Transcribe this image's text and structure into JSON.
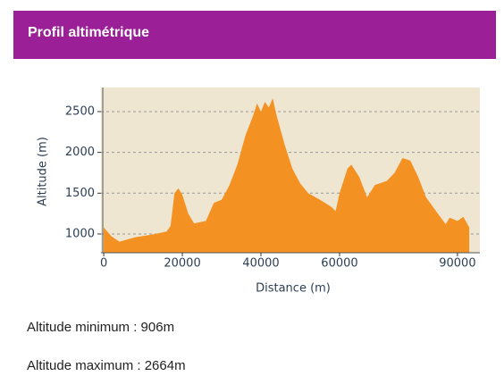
{
  "header": {
    "title": "Profil altimétrique"
  },
  "chart_data": {
    "type": "area",
    "ylabel": "Altitude (m)",
    "xlabel": "Distance (m)",
    "x": [
      0,
      2000,
      4000,
      8000,
      12000,
      16000,
      17000,
      18000,
      19000,
      20000,
      21500,
      23000,
      26000,
      28000,
      30000,
      32000,
      34000,
      36000,
      38000,
      39000,
      40000,
      41000,
      42000,
      43000,
      44000,
      46000,
      48000,
      50000,
      52000,
      55000,
      58000,
      59000,
      60000,
      62000,
      63000,
      65000,
      67000,
      69000,
      72000,
      74000,
      76000,
      78000,
      80000,
      82000,
      85000,
      87000,
      88000,
      90000,
      91500,
      93000
    ],
    "series": [
      {
        "name": "Altitude",
        "color": "#f39222",
        "values": [
          1080,
          970,
          906,
          960,
          990,
          1030,
          1100,
          1500,
          1560,
          1480,
          1250,
          1130,
          1160,
          1380,
          1420,
          1600,
          1850,
          2200,
          2450,
          2600,
          2500,
          2620,
          2550,
          2664,
          2450,
          2100,
          1800,
          1620,
          1500,
          1420,
          1330,
          1280,
          1500,
          1800,
          1850,
          1700,
          1450,
          1600,
          1650,
          1750,
          1930,
          1900,
          1700,
          1450,
          1250,
          1120,
          1200,
          1160,
          1210,
          1080
        ]
      }
    ],
    "xlim": [
      -700,
      95700
    ],
    "ylim": [
      770,
      2795
    ],
    "xticks": [
      0,
      20000,
      40000,
      60000,
      90000
    ],
    "yticks": [
      1000,
      1500,
      2000,
      2500
    ],
    "grid": true,
    "background": "#efe6d2"
  },
  "stats": [
    "Altitude minimum : 906m",
    "Altitude maximum : 2664m"
  ]
}
